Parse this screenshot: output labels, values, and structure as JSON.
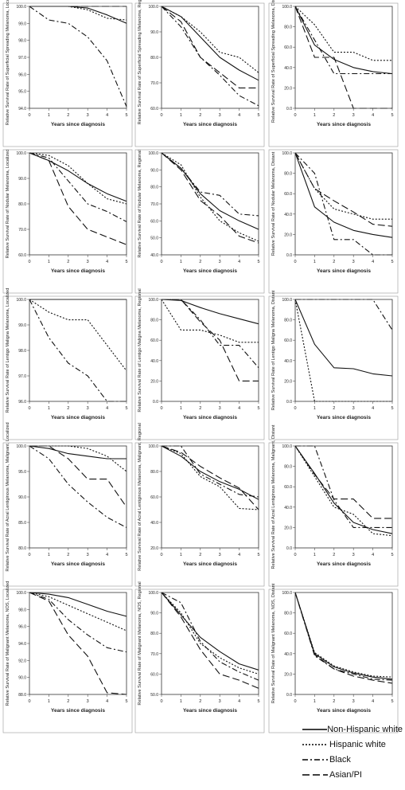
{
  "legend": {
    "items": [
      {
        "label": "Non-Hispanic white",
        "dash": ""
      },
      {
        "label": "Hispanic white",
        "dash": "2,2"
      },
      {
        "label": "Black",
        "dash": "7,3,2,3"
      },
      {
        "label": "Asian/PI",
        "dash": "9,4"
      }
    ]
  },
  "xlabel": "Years since diagnosis",
  "chart_data": [
    {
      "type": "line",
      "ylabel": "Relative Survival Rate of Superficial Spreading Melanoma, Localized",
      "yticks": [
        94,
        95,
        96,
        97,
        98,
        99,
        100
      ],
      "ylim": [
        94,
        100
      ],
      "x": [
        0,
        1,
        2,
        3,
        4,
        5
      ],
      "series": [
        {
          "name": "Non-Hispanic white",
          "values": [
            100,
            100,
            100,
            99.9,
            99.5,
            99.0
          ]
        },
        {
          "name": "Hispanic white",
          "values": [
            100,
            100,
            100,
            99.8,
            99.3,
            99.2
          ]
        },
        {
          "name": "Black",
          "values": [
            100,
            99.2,
            99.0,
            98.2,
            96.8,
            94.1
          ]
        },
        {
          "name": "Asian/PI",
          "values": [
            100,
            100,
            100,
            100,
            100,
            100
          ]
        }
      ]
    },
    {
      "type": "line",
      "ylabel": "Relative Survival Rate of Superficial Spreading Melanoma, Regional",
      "yticks": [
        60,
        70,
        80,
        90,
        100
      ],
      "ylim": [
        60,
        100
      ],
      "x": [
        0,
        1,
        2,
        3,
        4,
        5
      ],
      "series": [
        {
          "name": "Non-Hispanic white",
          "values": [
            100,
            96,
            88,
            80,
            75,
            71
          ]
        },
        {
          "name": "Hispanic white",
          "values": [
            100,
            96,
            90,
            82,
            80,
            74
          ]
        },
        {
          "name": "Black",
          "values": [
            100,
            92,
            80,
            73,
            65,
            61
          ]
        },
        {
          "name": "Asian/PI",
          "values": [
            100,
            94,
            80,
            74,
            68,
            68
          ]
        }
      ]
    },
    {
      "type": "line",
      "ylabel": "Relative Survival Rate of Superficial Spreading Melanoma, Distant",
      "yticks": [
        0,
        20,
        40,
        60,
        80,
        100
      ],
      "ylim": [
        0,
        100
      ],
      "x": [
        0,
        1,
        2,
        3,
        4,
        5
      ],
      "series": [
        {
          "name": "Non-Hispanic white",
          "values": [
            100,
            62,
            48,
            40,
            36,
            34
          ]
        },
        {
          "name": "Hispanic white",
          "values": [
            100,
            82,
            55,
            55,
            47,
            47
          ]
        },
        {
          "name": "Black",
          "values": [
            100,
            67,
            34,
            34,
            34,
            34
          ]
        },
        {
          "name": "Asian/PI",
          "values": [
            100,
            50,
            50,
            0,
            0,
            0
          ]
        }
      ]
    },
    {
      "type": "line",
      "ylabel": "Relative Survival Rate of Nodular Melanoma, Localized",
      "yticks": [
        60,
        70,
        80,
        90,
        100
      ],
      "ylim": [
        60,
        100
      ],
      "x": [
        0,
        1,
        2,
        3,
        4,
        5
      ],
      "series": [
        {
          "name": "Non-Hispanic white",
          "values": [
            100,
            97,
            93,
            88,
            84,
            81
          ]
        },
        {
          "name": "Hispanic white",
          "values": [
            100,
            99,
            95,
            88,
            82,
            80
          ]
        },
        {
          "name": "Black",
          "values": [
            100,
            98,
            89,
            80,
            77,
            73
          ]
        },
        {
          "name": "Asian/PI",
          "values": [
            100,
            97,
            79,
            70,
            67,
            64
          ]
        }
      ]
    },
    {
      "type": "line",
      "ylabel": "Relative Survival Rate of Nodular Melanoma, Regional",
      "yticks": [
        40,
        50,
        60,
        70,
        80,
        90,
        100
      ],
      "ylim": [
        40,
        100
      ],
      "x": [
        0,
        1,
        2,
        3,
        4,
        5
      ],
      "series": [
        {
          "name": "Non-Hispanic white",
          "values": [
            100,
            91,
            76,
            66,
            60,
            55
          ]
        },
        {
          "name": "Hispanic white",
          "values": [
            100,
            93,
            74,
            60,
            53,
            48
          ]
        },
        {
          "name": "Black",
          "values": [
            100,
            91,
            77,
            75,
            64,
            63
          ]
        },
        {
          "name": "Asian/PI",
          "values": [
            100,
            90,
            72,
            63,
            51,
            47
          ]
        }
      ]
    },
    {
      "type": "line",
      "ylabel": "Relative Survival Rate of Nodular Melanoma, Distant",
      "yticks": [
        0,
        20,
        40,
        60,
        80,
        100
      ],
      "ylim": [
        0,
        100
      ],
      "x": [
        0,
        1,
        2,
        3,
        4,
        5
      ],
      "series": [
        {
          "name": "Non-Hispanic white",
          "values": [
            100,
            47,
            32,
            24,
            20,
            17
          ]
        },
        {
          "name": "Hispanic white",
          "values": [
            100,
            65,
            45,
            40,
            35,
            35
          ]
        },
        {
          "name": "Black",
          "values": [
            100,
            80,
            15,
            15,
            0,
            0
          ]
        },
        {
          "name": "Asian/PI",
          "values": [
            100,
            65,
            53,
            42,
            30,
            28
          ]
        }
      ]
    },
    {
      "type": "line",
      "ylabel": "Relative Survival Rate of Lentigo Maligna Melanoma, Localized",
      "yticks": [
        96,
        97,
        98,
        99,
        100
      ],
      "ylim": [
        96,
        100
      ],
      "x": [
        0,
        1,
        2,
        3,
        4,
        5
      ],
      "series": [
        {
          "name": "Non-Hispanic white",
          "values": [
            100,
            100,
            100,
            100,
            100,
            100
          ]
        },
        {
          "name": "Hispanic white",
          "values": [
            100,
            99.5,
            99.2,
            99.2,
            98.2,
            97.2
          ]
        },
        {
          "name": "Black",
          "values": [
            100,
            98.5,
            97.5,
            97.0,
            96.0,
            96.0
          ]
        }
      ]
    },
    {
      "type": "line",
      "ylabel": "Relative Survival Rate of Lentigo Maligna Melanoma, Regional",
      "yticks": [
        0,
        20,
        40,
        60,
        80,
        100
      ],
      "ylim": [
        0,
        100
      ],
      "x": [
        0,
        1,
        2,
        3,
        4,
        5
      ],
      "series": [
        {
          "name": "Non-Hispanic white",
          "values": [
            100,
            99,
            92,
            86,
            81,
            76
          ]
        },
        {
          "name": "Hispanic white",
          "values": [
            100,
            70,
            70,
            65,
            58,
            58
          ]
        },
        {
          "name": "Black",
          "values": [
            100,
            100,
            80,
            55,
            55,
            33
          ]
        },
        {
          "name": "Asian/PI",
          "values": [
            100,
            100,
            78,
            60,
            20,
            20
          ]
        }
      ]
    },
    {
      "type": "line",
      "ylabel": "Relative Survival Rate of Lentigo Maligna Melanoma, Distant",
      "yticks": [
        0,
        20,
        40,
        60,
        80,
        100
      ],
      "ylim": [
        0,
        100
      ],
      "x": [
        0,
        1,
        2,
        3,
        4,
        5
      ],
      "series": [
        {
          "name": "Non-Hispanic white",
          "values": [
            100,
            56,
            33,
            32,
            27,
            25
          ]
        },
        {
          "name": "Hispanic white",
          "values": [
            100,
            0,
            0,
            0,
            0,
            0
          ]
        },
        {
          "name": "Black",
          "values": [
            100,
            100,
            100,
            100,
            100,
            70
          ]
        }
      ]
    },
    {
      "type": "line",
      "ylabel": "Relative Survival Rate of Acral Lentiginous Melanoma, Malignant, Localized",
      "yticks": [
        80,
        85,
        90,
        95,
        100
      ],
      "ylim": [
        80,
        100
      ],
      "x": [
        0,
        1,
        2,
        3,
        4,
        5
      ],
      "series": [
        {
          "name": "Non-Hispanic white",
          "values": [
            100,
            99.5,
            98.5,
            98,
            97.5,
            97.5
          ]
        },
        {
          "name": "Hispanic white",
          "values": [
            100,
            100,
            100,
            99.5,
            98,
            95
          ]
        },
        {
          "name": "Black",
          "values": [
            100,
            97.5,
            92.5,
            89,
            86,
            84
          ]
        },
        {
          "name": "Asian/PI",
          "values": [
            100,
            100,
            97.5,
            93.5,
            93.5,
            88
          ]
        }
      ]
    },
    {
      "type": "line",
      "ylabel": "Relative Survival Rate of Acral Lentiginous Melanoma, Malignant, Regional",
      "yticks": [
        20,
        40,
        60,
        80,
        100
      ],
      "ylim": [
        20,
        100
      ],
      "x": [
        0,
        1,
        2,
        3,
        4,
        5
      ],
      "series": [
        {
          "name": "Non-Hispanic white",
          "values": [
            100,
            92,
            80,
            72,
            66,
            58
          ]
        },
        {
          "name": "Hispanic white",
          "values": [
            100,
            94,
            76,
            68,
            51,
            50
          ]
        },
        {
          "name": "Black",
          "values": [
            100,
            100,
            78,
            70,
            62,
            60
          ]
        },
        {
          "name": "Asian/PI",
          "values": [
            100,
            95,
            84,
            75,
            67,
            50
          ]
        }
      ]
    },
    {
      "type": "line",
      "ylabel": "Relative Survival Rate of Acral Lentiginous Melanoma, Malignant, Distant",
      "yticks": [
        0,
        20,
        40,
        60,
        80,
        100
      ],
      "ylim": [
        0,
        100
      ],
      "x": [
        0,
        1,
        2,
        3,
        4,
        5
      ],
      "series": [
        {
          "name": "Non-Hispanic white",
          "values": [
            100,
            73,
            44,
            25,
            18,
            14
          ]
        },
        {
          "name": "Hispanic white",
          "values": [
            100,
            70,
            40,
            33,
            14,
            12
          ]
        },
        {
          "name": "Black",
          "values": [
            100,
            100,
            47,
            20,
            20,
            20
          ]
        },
        {
          "name": "Asian/PI",
          "values": [
            100,
            72,
            48,
            48,
            29,
            29
          ]
        }
      ]
    },
    {
      "type": "line",
      "ylabel": "Relative Survival Rate of Malignant Melanoma, NOS, Localized",
      "yticks": [
        88,
        90,
        92,
        94,
        96,
        98,
        100
      ],
      "ylim": [
        88,
        100
      ],
      "x": [
        0,
        1,
        2,
        3,
        4,
        5
      ],
      "series": [
        {
          "name": "Non-Hispanic white",
          "values": [
            100,
            99.8,
            99.4,
            98.6,
            97.8,
            97.2
          ]
        },
        {
          "name": "Hispanic white",
          "values": [
            100,
            99.5,
            98.5,
            97.5,
            96.5,
            95.5
          ]
        },
        {
          "name": "Black",
          "values": [
            100,
            99.2,
            96.8,
            95.0,
            93.5,
            93.0
          ]
        },
        {
          "name": "Asian/PI",
          "values": [
            100,
            99.0,
            95.0,
            92.5,
            88.2,
            88.0
          ]
        }
      ]
    },
    {
      "type": "line",
      "ylabel": "Relative Survival Rate of Malignant Melanoma, NOS, Regional",
      "yticks": [
        50,
        60,
        70,
        80,
        90,
        100
      ],
      "ylim": [
        50,
        100
      ],
      "x": [
        0,
        1,
        2,
        3,
        4,
        5
      ],
      "series": [
        {
          "name": "Non-Hispanic white",
          "values": [
            100,
            89,
            78,
            71,
            65,
            62
          ]
        },
        {
          "name": "Hispanic white",
          "values": [
            100,
            90,
            75,
            68,
            63,
            60
          ]
        },
        {
          "name": "Black",
          "values": [
            100,
            95,
            76,
            66,
            61,
            57
          ]
        },
        {
          "name": "Asian/PI",
          "values": [
            100,
            88,
            72,
            60,
            57,
            53
          ]
        }
      ]
    },
    {
      "type": "line",
      "ylabel": "Relative Survival Rate of Malignant Melanoma, NOS, Distant",
      "yticks": [
        0,
        20,
        40,
        60,
        80,
        100
      ],
      "ylim": [
        0,
        100
      ],
      "x": [
        0,
        1,
        2,
        3,
        4,
        5
      ],
      "series": [
        {
          "name": "Non-Hispanic white",
          "values": [
            100,
            40,
            27,
            21,
            17,
            15
          ]
        },
        {
          "name": "Hispanic white",
          "values": [
            100,
            41,
            28,
            22,
            18,
            17
          ]
        },
        {
          "name": "Black",
          "values": [
            100,
            38,
            25,
            20,
            15,
            14
          ]
        },
        {
          "name": "Asian/PI",
          "values": [
            100,
            39,
            25,
            18,
            14,
            11
          ]
        }
      ]
    }
  ]
}
